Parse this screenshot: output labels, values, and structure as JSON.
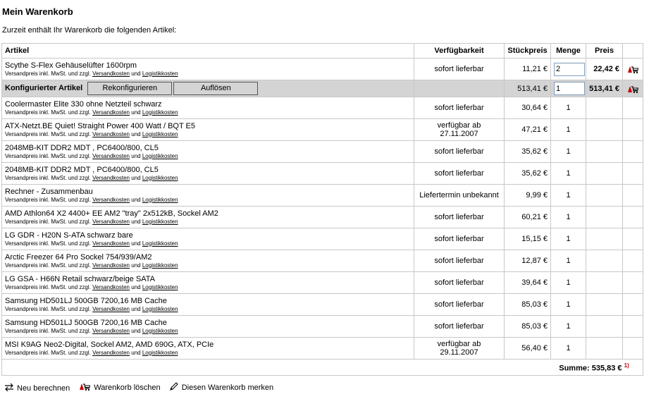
{
  "page": {
    "title": "Mein Warenkorb",
    "intro": "Zurzeit enthält Ihr Warenkorb die folgenden Artikel:"
  },
  "table": {
    "headers": {
      "artikel": "Artikel",
      "verfuegbarkeit": "Verfügbarkeit",
      "stueckpreis": "Stückpreis",
      "menge": "Menge",
      "preis": "Preis"
    },
    "note": {
      "prefix": "Versandpreis inkl. MwSt. und zzgl.",
      "shipping_link": "Versandkosten",
      "and": "und",
      "logistics_link": "Logistikkosten"
    }
  },
  "first_item": {
    "name": "Scythe S-Flex Gehäuselüfter 1600rpm",
    "availability": "sofort lieferbar",
    "unit_price": "11,21 €",
    "quantity": "2",
    "total": "22,42 €"
  },
  "configured": {
    "label": "Konfigurierter Artikel",
    "reconfigure_button": "Rekonfigurieren",
    "dissolve_button": "Auflösen",
    "unit_price": "513,41 €",
    "quantity": "1",
    "total": "513,41 €"
  },
  "sub_items": [
    {
      "name": "Coolermaster Elite 330 ohne Netzteil schwarz",
      "availability": "sofort lieferbar",
      "unit_price": "30,64 €",
      "quantity": "1"
    },
    {
      "name": "ATX-Netzt.BE Quiet! Straight Power 400 Watt / BQT E5",
      "availability": "verfügbar ab 27.11.2007",
      "unit_price": "47,21 €",
      "quantity": "1"
    },
    {
      "name": "2048MB-KIT DDR2 MDT , PC6400/800, CL5",
      "availability": "sofort lieferbar",
      "unit_price": "35,62 €",
      "quantity": "1"
    },
    {
      "name": "2048MB-KIT DDR2 MDT , PC6400/800, CL5",
      "availability": "sofort lieferbar",
      "unit_price": "35,62 €",
      "quantity": "1"
    },
    {
      "name": "Rechner - Zusammenbau",
      "availability": "Liefertermin unbekannt",
      "unit_price": "9,99 €",
      "quantity": "1"
    },
    {
      "name": "AMD Athlon64 X2 4400+ EE AM2 \"tray\" 2x512kB, Sockel AM2",
      "availability": "sofort lieferbar",
      "unit_price": "60,21 €",
      "quantity": "1"
    },
    {
      "name": "LG GDR - H20N S-ATA schwarz bare",
      "availability": "sofort lieferbar",
      "unit_price": "15,15 €",
      "quantity": "1"
    },
    {
      "name": "Arctic Freezer 64 Pro Sockel 754/939/AM2",
      "availability": "sofort lieferbar",
      "unit_price": "12,87 €",
      "quantity": "1"
    },
    {
      "name": "LG GSA - H66N Retail schwarz/beige SATA",
      "availability": "sofort lieferbar",
      "unit_price": "39,64 €",
      "quantity": "1"
    },
    {
      "name": "Samsung HD501LJ 500GB 7200,16 MB Cache",
      "availability": "sofort lieferbar",
      "unit_price": "85,03 €",
      "quantity": "1"
    },
    {
      "name": "Samsung HD501LJ 500GB 7200,16 MB Cache",
      "availability": "sofort lieferbar",
      "unit_price": "85,03 €",
      "quantity": "1"
    },
    {
      "name": "MSI K9AG Neo2-Digital, Sockel AM2, AMD 690G, ATX, PCIe",
      "availability": "verfügbar ab 29.11.2007",
      "unit_price": "56,40 €",
      "quantity": "1"
    }
  ],
  "summary": {
    "label": "Summe: 535,83 €",
    "footnote": "1)"
  },
  "actions": {
    "recalculate": "Neu berechnen",
    "delete_cart": "Warenkorb löschen",
    "remember_cart": "Diesen Warenkorb merken"
  },
  "icons": {
    "delete": "cart-delete-icon",
    "recalculate": "recalculate-icon",
    "remember": "pencil-icon"
  },
  "colors": {
    "configured_row_bg": "#d4d4d4",
    "delete_icon_red": "#cc0000",
    "footnote_red": "#c00000"
  }
}
